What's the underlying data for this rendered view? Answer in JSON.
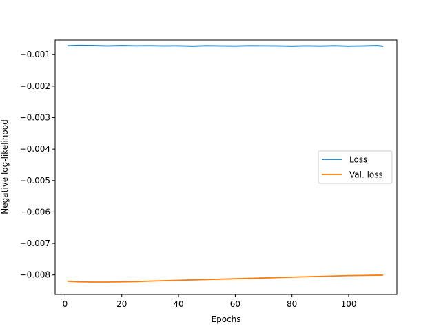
{
  "chart_data": {
    "type": "line",
    "title": "",
    "xlabel": "Epochs",
    "ylabel": "Negative log-likelihood",
    "xlim": [
      -3.5,
      117
    ],
    "ylim": [
      -0.00862,
      -0.000535
    ],
    "xticks": [
      0,
      20,
      40,
      60,
      80,
      100
    ],
    "yticks": [
      -0.001,
      -0.002,
      -0.003,
      -0.004,
      -0.005,
      -0.006,
      -0.007,
      -0.008
    ],
    "xtick_labels": [
      "0",
      "20",
      "40",
      "60",
      "80",
      "100"
    ],
    "ytick_labels": [
      "−0.001",
      "−0.002",
      "−0.003",
      "−0.004",
      "−0.005",
      "−0.006",
      "−0.007",
      "−0.008"
    ],
    "grid": false,
    "legend_position": "center-right",
    "series": [
      {
        "name": "Loss",
        "color": "#1f77b4",
        "x": [
          1,
          5,
          10,
          15,
          20,
          25,
          30,
          35,
          40,
          45,
          50,
          55,
          60,
          65,
          70,
          75,
          80,
          85,
          90,
          95,
          100,
          105,
          110,
          112
        ],
        "y": [
          -0.000715,
          -0.000705,
          -0.000712,
          -0.000722,
          -0.000712,
          -0.000718,
          -0.000715,
          -0.000722,
          -0.000718,
          -0.000728,
          -0.000715,
          -0.000722,
          -0.000725,
          -0.000715,
          -0.000718,
          -0.000722,
          -0.000728,
          -0.000718,
          -0.000725,
          -0.000715,
          -0.000728,
          -0.000722,
          -0.000712,
          -0.000728
        ]
      },
      {
        "name": "Val. loss",
        "color": "#ff7f0e",
        "x": [
          1,
          5,
          10,
          15,
          20,
          25,
          30,
          40,
          50,
          60,
          70,
          80,
          90,
          100,
          112
        ],
        "y": [
          -0.0082,
          -0.00822,
          -0.008225,
          -0.008225,
          -0.00822,
          -0.00821,
          -0.008195,
          -0.00817,
          -0.008145,
          -0.00812,
          -0.008095,
          -0.00807,
          -0.008045,
          -0.00802,
          -0.008005
        ]
      }
    ]
  }
}
